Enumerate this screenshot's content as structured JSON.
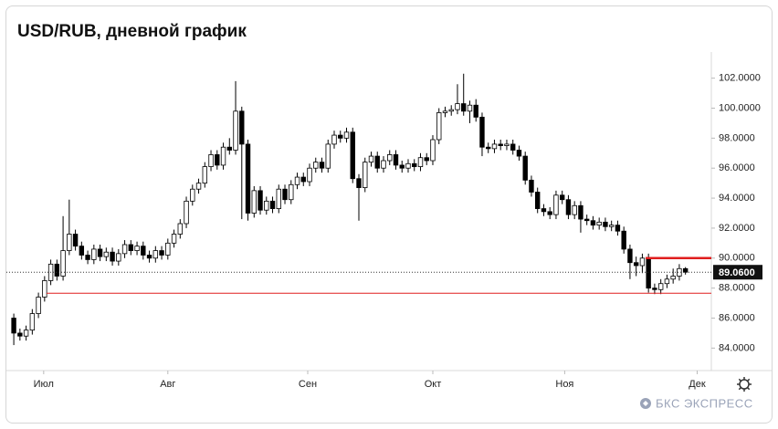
{
  "chart_data": {
    "type": "candlestick",
    "title": "USD/RUB, дневной график",
    "brand": "БКС ЭКСПРЕСС",
    "ylim": [
      82.5,
      103.5
    ],
    "yticks": [
      {
        "value": 84,
        "label": "84.0000"
      },
      {
        "value": 86,
        "label": "86.0000"
      },
      {
        "value": 88,
        "label": "88.0000"
      },
      {
        "value": 90,
        "label": "90.0000"
      },
      {
        "value": 92,
        "label": "92.0000"
      },
      {
        "value": 94,
        "label": "94.0000"
      },
      {
        "value": 96,
        "label": "96.0000"
      },
      {
        "value": 98,
        "label": "98.0000"
      },
      {
        "value": 100,
        "label": "100.0000"
      },
      {
        "value": 102,
        "label": "102.0000"
      }
    ],
    "xlim": [
      -1.2,
      113.2
    ],
    "xticks": [
      {
        "value": 4.85,
        "label": "Июл"
      },
      {
        "value": 25.0,
        "label": "Авг"
      },
      {
        "value": 47.7,
        "label": "Сен"
      },
      {
        "value": 68.0,
        "label": "Окт"
      },
      {
        "value": 89.4,
        "label": "Ноя"
      },
      {
        "value": 110.9,
        "label": "Дек"
      }
    ],
    "up_color": "#ffffff",
    "down_color": "#000000",
    "last_price": {
      "value": 89.06,
      "label": "89.0600"
    },
    "level_lines": [
      {
        "value": 90.0,
        "color": "#e01e1e"
      },
      {
        "value": 87.66,
        "color": "#e01e1e"
      }
    ],
    "open": [
      86.0,
      85.0,
      84.8,
      85.2,
      86.3,
      87.4,
      88.5,
      89.6,
      88.8,
      90.5,
      91.6,
      90.8,
      90.2,
      89.9,
      90.6,
      90.1,
      90.4,
      89.8,
      90.3,
      90.9,
      90.5,
      90.8,
      90.2,
      90.0,
      90.5,
      90.2,
      91.0,
      91.6,
      92.3,
      93.8,
      94.6,
      95.0,
      96.1,
      96.9,
      96.2,
      97.4,
      97.2,
      99.8,
      97.6,
      93.0,
      94.5,
      93.2,
      93.8,
      93.3,
      94.6,
      93.9,
      94.9,
      95.4,
      95.1,
      96.0,
      96.4,
      96.0,
      97.6,
      98.2,
      98.0,
      98.4,
      95.3,
      94.7,
      96.4,
      96.8,
      96.0,
      96.5,
      96.9,
      96.2,
      96.0,
      96.3,
      96.1,
      96.7,
      96.5,
      97.9,
      99.7,
      99.8,
      99.9,
      100.3,
      99.8,
      100.2,
      99.4,
      97.4,
      97.3,
      97.6,
      97.5,
      97.6,
      97.2,
      96.8,
      95.2,
      94.4,
      93.3,
      93.1,
      92.9,
      94.2,
      93.9,
      92.9,
      93.5,
      92.6,
      92.5,
      92.2,
      92.4,
      92.1,
      92.2,
      91.8,
      90.6,
      89.7,
      89.5,
      90.0,
      88.0,
      87.9,
      88.3,
      88.6,
      88.8,
      89.3
    ],
    "high": [
      86.3,
      85.3,
      85.5,
      86.6,
      87.7,
      88.8,
      89.9,
      89.9,
      92.8,
      93.9,
      91.9,
      91.1,
      90.5,
      90.9,
      90.9,
      90.7,
      90.7,
      90.6,
      91.2,
      91.2,
      91.1,
      91.1,
      90.5,
      90.8,
      90.8,
      91.3,
      91.9,
      92.6,
      94.1,
      94.9,
      95.3,
      96.4,
      97.2,
      97.2,
      97.7,
      98.0,
      101.8,
      100.1,
      97.9,
      94.8,
      94.8,
      94.1,
      94.1,
      94.9,
      94.9,
      95.2,
      95.7,
      95.7,
      96.3,
      96.7,
      96.7,
      97.9,
      98.5,
      98.5,
      98.7,
      98.7,
      95.6,
      96.7,
      97.1,
      97.1,
      96.8,
      97.2,
      97.2,
      96.5,
      96.6,
      96.6,
      97.0,
      97.0,
      98.2,
      100.0,
      100.1,
      100.2,
      101.6,
      102.3,
      100.5,
      100.6,
      99.7,
      97.7,
      97.9,
      97.9,
      97.9,
      97.9,
      97.5,
      97.1,
      95.5,
      94.7,
      93.6,
      93.4,
      94.5,
      94.5,
      94.2,
      93.8,
      93.8,
      92.9,
      92.8,
      92.7,
      92.7,
      92.5,
      92.5,
      92.1,
      90.9,
      90.1,
      90.3,
      90.3,
      88.3,
      88.6,
      88.9,
      89.3,
      89.6,
      89.4
    ],
    "low": [
      84.2,
      84.5,
      84.5,
      84.9,
      86.0,
      87.1,
      88.2,
      88.5,
      88.5,
      90.2,
      90.5,
      89.9,
      89.6,
      89.6,
      89.8,
      89.8,
      89.5,
      89.5,
      90.0,
      90.2,
      90.2,
      89.9,
      89.7,
      89.7,
      89.9,
      89.9,
      90.7,
      91.3,
      92.0,
      93.5,
      94.3,
      94.7,
      95.8,
      95.9,
      95.9,
      96.9,
      96.9,
      92.6,
      92.5,
      92.7,
      92.9,
      92.9,
      93.0,
      93.0,
      93.6,
      93.6,
      94.6,
      94.8,
      94.8,
      95.7,
      95.7,
      95.7,
      97.3,
      97.7,
      97.7,
      95.0,
      92.5,
      94.4,
      96.1,
      95.7,
      95.7,
      96.2,
      95.9,
      95.7,
      95.7,
      95.8,
      95.8,
      96.2,
      96.2,
      97.6,
      99.4,
      99.5,
      99.6,
      99.5,
      99.0,
      99.1,
      96.8,
      97.0,
      97.0,
      97.2,
      97.2,
      96.9,
      96.5,
      94.9,
      94.1,
      93.0,
      92.8,
      92.6,
      92.6,
      93.6,
      92.6,
      92.6,
      91.7,
      92.2,
      91.9,
      91.9,
      91.8,
      91.8,
      91.5,
      90.3,
      88.6,
      88.8,
      89.0,
      87.7,
      87.6,
      87.6,
      88.0,
      88.3,
      88.5,
      88.9
    ],
    "close": [
      85.0,
      84.8,
      85.2,
      86.3,
      87.4,
      88.5,
      89.6,
      88.8,
      90.5,
      91.6,
      90.8,
      90.2,
      89.9,
      90.6,
      90.1,
      90.4,
      89.8,
      90.3,
      90.9,
      90.5,
      90.8,
      90.2,
      90.0,
      90.5,
      90.2,
      91.0,
      91.6,
      92.3,
      93.8,
      94.6,
      95.0,
      96.1,
      96.9,
      96.2,
      97.4,
      97.2,
      99.8,
      97.6,
      93.0,
      94.5,
      93.2,
      93.8,
      93.3,
      94.6,
      93.9,
      94.9,
      95.4,
      95.1,
      96.0,
      96.4,
      96.0,
      97.6,
      98.2,
      98.0,
      98.4,
      95.3,
      94.7,
      96.4,
      96.8,
      96.0,
      96.5,
      96.9,
      96.2,
      96.0,
      96.3,
      96.1,
      96.7,
      96.5,
      97.9,
      99.7,
      99.8,
      99.9,
      100.3,
      99.8,
      100.2,
      99.4,
      97.4,
      97.3,
      97.6,
      97.5,
      97.6,
      97.2,
      96.8,
      95.2,
      94.4,
      93.3,
      93.1,
      92.9,
      94.2,
      93.9,
      92.9,
      93.5,
      92.6,
      92.5,
      92.2,
      92.4,
      92.1,
      92.2,
      91.8,
      90.6,
      89.7,
      89.5,
      90.0,
      88.0,
      87.9,
      88.3,
      88.6,
      88.8,
      89.3,
      89.06
    ]
  }
}
